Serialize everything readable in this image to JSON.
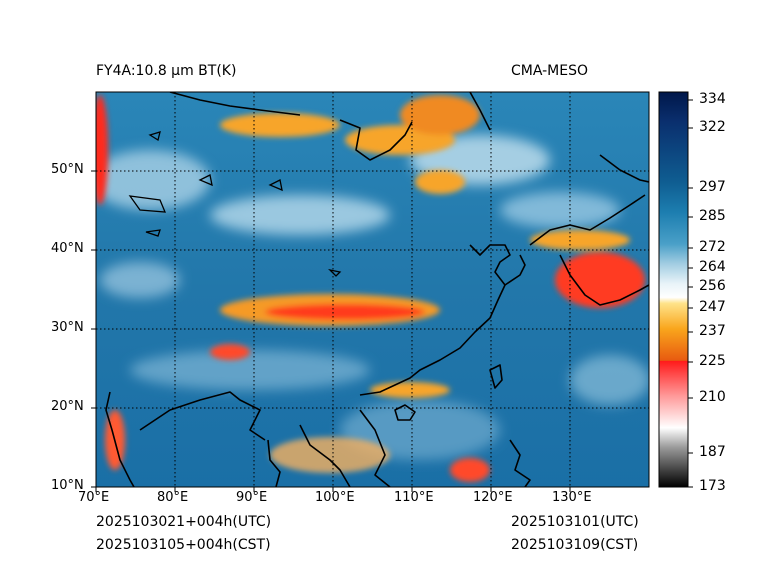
{
  "header": {
    "left_title": "FY4A:10.8 µm BT(K)",
    "right_title": "CMA-MESO"
  },
  "footer": {
    "init_utc": "2025103021+004h(UTC)",
    "init_cst": "2025103105+004h(CST)",
    "valid_utc": "2025103101(UTC)",
    "valid_cst": "2025103109(CST)"
  },
  "map": {
    "lon_range": [
      70,
      140
    ],
    "lat_range": [
      10,
      60
    ],
    "lon_ticks": [
      {
        "value": 70,
        "label": "70°E"
      },
      {
        "value": 80,
        "label": "80°E"
      },
      {
        "value": 90,
        "label": "90°E"
      },
      {
        "value": 100,
        "label": "100°E"
      },
      {
        "value": 110,
        "label": "110°E"
      },
      {
        "value": 120,
        "label": "120°E"
      },
      {
        "value": 130,
        "label": "130°E"
      }
    ],
    "lat_ticks": [
      {
        "value": 10,
        "label": "10°N"
      },
      {
        "value": 20,
        "label": "20°N"
      },
      {
        "value": 30,
        "label": "30°N"
      },
      {
        "value": 40,
        "label": "40°N"
      },
      {
        "value": 50,
        "label": "50°N"
      }
    ]
  },
  "colorbar": {
    "range": [
      173,
      334
    ],
    "ticks": [
      "334",
      "322",
      "297",
      "285",
      "272",
      "264",
      "256",
      "247",
      "237",
      "225",
      "210",
      "187",
      "173"
    ],
    "tick_values": [
      334,
      322,
      297,
      285,
      272,
      264,
      256,
      247,
      237,
      225,
      210,
      187,
      173
    ],
    "color_stops": [
      {
        "value": 334,
        "color": "#00174a"
      },
      {
        "value": 322,
        "color": "#0a2f6e"
      },
      {
        "value": 297,
        "color": "#0f5e92"
      },
      {
        "value": 285,
        "color": "#1d7eb0"
      },
      {
        "value": 272,
        "color": "#4aa0c8"
      },
      {
        "value": 264,
        "color": "#a2cde2"
      },
      {
        "value": 256,
        "color": "#e8f3f8"
      },
      {
        "value": 250,
        "color": "#ffffff"
      },
      {
        "value": 247,
        "color": "#ffe38a"
      },
      {
        "value": 237,
        "color": "#f9a51c"
      },
      {
        "value": 226,
        "color": "#e85a10"
      },
      {
        "value": 225,
        "color": "#ff1a1a"
      },
      {
        "value": 210,
        "color": "#ff9a9a"
      },
      {
        "value": 195,
        "color": "#ffffff"
      },
      {
        "value": 187,
        "color": "#9a9a9a"
      },
      {
        "value": 173,
        "color": "#000000"
      }
    ]
  }
}
